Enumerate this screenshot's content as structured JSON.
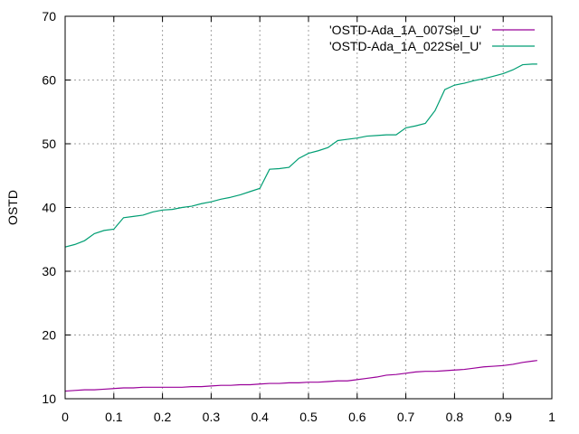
{
  "chart_data": {
    "type": "line",
    "title": "",
    "xlabel": "",
    "ylabel": "OSTD",
    "xlim": [
      0,
      1
    ],
    "ylim": [
      10,
      70
    ],
    "xticks": [
      "0",
      "0.1",
      "0.2",
      "0.3",
      "0.4",
      "0.5",
      "0.6",
      "0.7",
      "0.8",
      "0.9",
      "1"
    ],
    "yticks": [
      "10",
      "20",
      "30",
      "40",
      "50",
      "60",
      "70"
    ],
    "grid": true,
    "legend_position": "top-right",
    "series": [
      {
        "name": "'OSTD-Ada_1A_007Sel_U'",
        "color": "#990099",
        "x": [
          0,
          0.02,
          0.04,
          0.06,
          0.08,
          0.1,
          0.12,
          0.14,
          0.16,
          0.18,
          0.2,
          0.22,
          0.24,
          0.26,
          0.28,
          0.3,
          0.32,
          0.34,
          0.36,
          0.38,
          0.4,
          0.42,
          0.44,
          0.46,
          0.48,
          0.5,
          0.52,
          0.54,
          0.56,
          0.58,
          0.6,
          0.62,
          0.64,
          0.66,
          0.68,
          0.7,
          0.72,
          0.74,
          0.76,
          0.78,
          0.8,
          0.82,
          0.84,
          0.86,
          0.88,
          0.9,
          0.92,
          0.94,
          0.96,
          0.97
        ],
        "y": [
          11.2,
          11.3,
          11.4,
          11.4,
          11.5,
          11.6,
          11.7,
          11.7,
          11.8,
          11.8,
          11.8,
          11.8,
          11.8,
          11.9,
          11.9,
          12.0,
          12.1,
          12.1,
          12.2,
          12.2,
          12.3,
          12.4,
          12.4,
          12.5,
          12.5,
          12.6,
          12.6,
          12.7,
          12.8,
          12.8,
          13.0,
          13.2,
          13.4,
          13.7,
          13.8,
          14.0,
          14.2,
          14.3,
          14.3,
          14.4,
          14.5,
          14.6,
          14.8,
          15.0,
          15.1,
          15.2,
          15.4,
          15.7,
          15.9,
          16.0
        ]
      },
      {
        "name": "'OSTD-Ada_1A_022Sel_U'",
        "color": "#009e73",
        "x": [
          0,
          0.02,
          0.04,
          0.06,
          0.08,
          0.1,
          0.12,
          0.14,
          0.16,
          0.18,
          0.2,
          0.22,
          0.24,
          0.26,
          0.28,
          0.3,
          0.32,
          0.34,
          0.36,
          0.38,
          0.4,
          0.42,
          0.44,
          0.46,
          0.48,
          0.5,
          0.52,
          0.54,
          0.56,
          0.58,
          0.6,
          0.62,
          0.64,
          0.66,
          0.68,
          0.7,
          0.72,
          0.74,
          0.76,
          0.78,
          0.8,
          0.82,
          0.84,
          0.86,
          0.88,
          0.9,
          0.92,
          0.94,
          0.96,
          0.97
        ],
        "y": [
          33.8,
          34.2,
          34.8,
          35.9,
          36.4,
          36.6,
          38.4,
          38.6,
          38.8,
          39.3,
          39.6,
          39.7,
          40.0,
          40.2,
          40.6,
          40.9,
          41.3,
          41.6,
          42.0,
          42.5,
          43.0,
          46.0,
          46.1,
          46.3,
          47.7,
          48.5,
          48.9,
          49.4,
          50.5,
          50.7,
          50.9,
          51.2,
          51.3,
          51.4,
          51.4,
          52.5,
          52.8,
          53.2,
          55.2,
          58.5,
          59.2,
          59.5,
          59.9,
          60.2,
          60.6,
          61.0,
          61.6,
          62.4,
          62.5,
          62.5
        ]
      }
    ]
  }
}
